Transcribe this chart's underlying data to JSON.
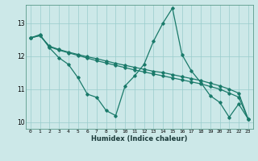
{
  "xlabel": "Humidex (Indice chaleur)",
  "bg_color": "#cce8e8",
  "grid_color": "#99cccc",
  "line_color": "#1a7a6a",
  "xlim": [
    -0.5,
    23.5
  ],
  "ylim": [
    9.8,
    13.55
  ],
  "xticks": [
    0,
    1,
    2,
    3,
    4,
    5,
    6,
    7,
    8,
    9,
    10,
    11,
    12,
    13,
    14,
    15,
    16,
    17,
    18,
    19,
    20,
    21,
    22,
    23
  ],
  "yticks": [
    10,
    11,
    12,
    13
  ],
  "line1_x": [
    0,
    1,
    2,
    3,
    4,
    5,
    6,
    7,
    8,
    9,
    10,
    11,
    12,
    13,
    14,
    15,
    16,
    17,
    18,
    19,
    20,
    21,
    22,
    23
  ],
  "line1_y": [
    12.55,
    12.65,
    12.25,
    11.95,
    11.75,
    11.35,
    10.85,
    10.75,
    10.35,
    10.2,
    11.1,
    11.4,
    11.75,
    12.45,
    13.0,
    13.45,
    12.05,
    11.55,
    11.2,
    10.8,
    10.6,
    10.15,
    10.55,
    10.1
  ],
  "line2_x": [
    0,
    1,
    2,
    3,
    4,
    5,
    6,
    7,
    8,
    9,
    10,
    11,
    12,
    13,
    14,
    15,
    16,
    17,
    18,
    19,
    20,
    21,
    22,
    23
  ],
  "line2_y": [
    12.55,
    12.62,
    12.3,
    12.2,
    12.12,
    12.05,
    11.98,
    11.92,
    11.85,
    11.78,
    11.72,
    11.66,
    11.6,
    11.54,
    11.5,
    11.44,
    11.38,
    11.32,
    11.26,
    11.18,
    11.1,
    11.0,
    10.88,
    10.1
  ],
  "line3_x": [
    0,
    1,
    2,
    3,
    4,
    5,
    6,
    7,
    8,
    9,
    10,
    11,
    12,
    13,
    14,
    15,
    16,
    17,
    18,
    19,
    20,
    21,
    22,
    23
  ],
  "line3_y": [
    12.55,
    12.62,
    12.28,
    12.18,
    12.1,
    12.02,
    11.94,
    11.86,
    11.79,
    11.72,
    11.65,
    11.58,
    11.52,
    11.46,
    11.4,
    11.34,
    11.28,
    11.22,
    11.16,
    11.08,
    11.0,
    10.88,
    10.76,
    10.1
  ]
}
